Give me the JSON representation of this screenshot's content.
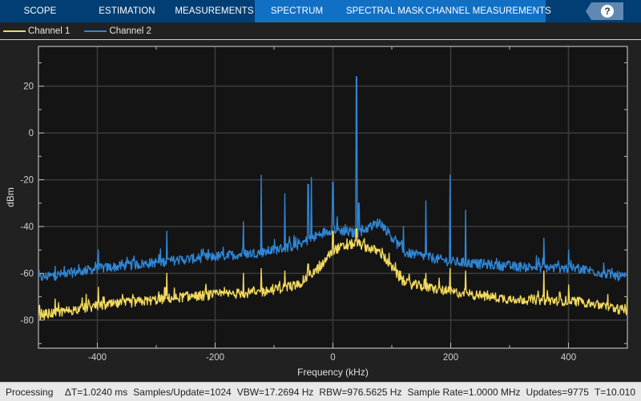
{
  "toolstrip": {
    "tabs": [
      {
        "label": "SCOPE",
        "contextual": false,
        "width": 100
      },
      {
        "label": "ESTIMATION",
        "contextual": false,
        "width": 117
      },
      {
        "label": "MEASUREMENTS",
        "contextual": false,
        "width": 101
      },
      {
        "label": "SPECTRUM",
        "contextual": true,
        "width": 105
      },
      {
        "label": "SPECTRAL MASK",
        "contextual": true,
        "width": 115
      },
      {
        "label": "CHANNEL MEASUREMENTS",
        "contextual": true,
        "width": 143
      }
    ],
    "help_glyph": "?",
    "help_icon": "help-icon"
  },
  "legend": {
    "items": [
      {
        "label": "Channel 1",
        "color": "#f2d95c"
      },
      {
        "label": "Channel 2",
        "color": "#2f86d6"
      }
    ]
  },
  "status": {
    "state": "Processing",
    "fields": [
      "ΔT=1.0240 ms",
      "Samples/Update=1024",
      "VBW=17.2694 Hz",
      "RBW=976.5625 Hz",
      "Sample Rate=1.0000 MHz",
      "Updates=9775",
      "T=10.010"
    ]
  },
  "colors": {
    "toolstrip_bg": "#003e73",
    "contextual_tab_bg": "#1170c4",
    "figure_bg": "#212121",
    "axes_bg": "#141414",
    "grid": "#3c3c3c",
    "axis": "#b8b8b8",
    "tick_label": "#d0d0d0",
    "channel1": "#f2d95c",
    "channel2": "#2f86d6"
  },
  "chart_data": {
    "type": "line",
    "title": "",
    "xlabel": "Frequency (kHz)",
    "ylabel": "dBm",
    "xlim": [
      -500,
      500
    ],
    "ylim": [
      -92,
      37
    ],
    "xticks": [
      -400,
      -200,
      0,
      200,
      400
    ],
    "yticks": [
      -80,
      -60,
      -40,
      -20,
      0,
      20
    ],
    "grid": true,
    "legend_position": "top-left (outside, legend bar)",
    "series": [
      {
        "name": "Channel 1",
        "color": "#f2d95c",
        "noise_floor_profile": {
          "x": [
            -500,
            -400,
            -250,
            -120,
            -60,
            -20,
            0,
            40,
            80,
            120,
            200,
            300,
            420,
            500
          ],
          "y": [
            -78,
            -74,
            -70,
            -68,
            -65,
            -57,
            -50,
            -47,
            -51,
            -64,
            -68,
            -71,
            -72,
            -76
          ]
        },
        "spikes": [
          {
            "x": -472,
            "y": -71
          },
          {
            "x": -419,
            "y": -69
          },
          {
            "x": -398,
            "y": -66
          },
          {
            "x": -340,
            "y": -69
          },
          {
            "x": -282,
            "y": -60
          },
          {
            "x": -152,
            "y": -60
          },
          {
            "x": -122,
            "y": -58
          },
          {
            "x": -82,
            "y": -59
          },
          {
            "x": -42,
            "y": -56
          },
          {
            "x": 0,
            "y": -42
          },
          {
            "x": 40,
            "y": -41
          },
          {
            "x": 120,
            "y": -61
          },
          {
            "x": 158,
            "y": -60
          },
          {
            "x": 199,
            "y": -58
          },
          {
            "x": 225,
            "y": -59
          },
          {
            "x": 358,
            "y": -59
          },
          {
            "x": 400,
            "y": -65
          }
        ]
      },
      {
        "name": "Channel 2",
        "color": "#2f86d6",
        "noise_floor_profile": {
          "x": [
            -500,
            -400,
            -250,
            -120,
            -60,
            -20,
            0,
            40,
            80,
            120,
            200,
            300,
            420,
            500
          ],
          "y": [
            -62,
            -58,
            -54,
            -51,
            -48,
            -43,
            -41,
            -43,
            -38,
            -51,
            -55,
            -57,
            -58,
            -62
          ]
        },
        "spikes": [
          {
            "x": -472,
            "y": -57
          },
          {
            "x": -398,
            "y": -50
          },
          {
            "x": -340,
            "y": -54
          },
          {
            "x": -282,
            "y": -42
          },
          {
            "x": -152,
            "y": -38
          },
          {
            "x": -122,
            "y": -18
          },
          {
            "x": -82,
            "y": -26
          },
          {
            "x": -42,
            "y": -22
          },
          {
            "x": -37,
            "y": -19
          },
          {
            "x": 0,
            "y": -21
          },
          {
            "x": 40,
            "y": 24
          },
          {
            "x": 44,
            "y": -30
          },
          {
            "x": 120,
            "y": -40
          },
          {
            "x": 158,
            "y": -29
          },
          {
            "x": 199,
            "y": -18
          },
          {
            "x": 225,
            "y": -33
          },
          {
            "x": 358,
            "y": -45
          },
          {
            "x": 400,
            "y": -50
          }
        ]
      }
    ]
  }
}
